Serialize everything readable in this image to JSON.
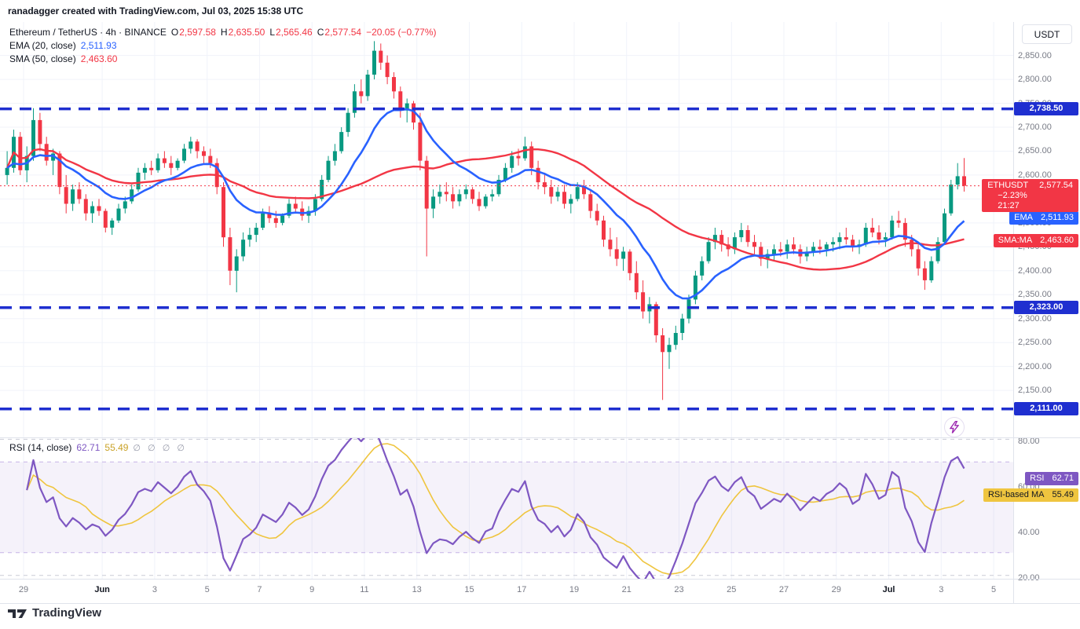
{
  "header": {
    "credit": "ranadagger created with TradingView.com, Jul 03, 2025 15:38 UTC"
  },
  "legend": {
    "title": "Ethereum / TetherUS · 4h · BINANCE",
    "o_label": "O",
    "o": "2,597.58",
    "h_label": "H",
    "h": "2,635.50",
    "l_label": "L",
    "l": "2,565.46",
    "c_label": "C",
    "c": "2,577.54",
    "change": "−20.05 (−0.77%)",
    "ema_label": "EMA (20, close)",
    "ema_value": "2,511.93",
    "sma_label": "SMA (50, close)",
    "sma_value": "2,463.60"
  },
  "axis": {
    "currency": "USDT",
    "price_ticks": [
      {
        "value": 2850,
        "label": "2,850.00"
      },
      {
        "value": 2800,
        "label": "2,800.00"
      },
      {
        "value": 2750,
        "label": "2,750.00"
      },
      {
        "value": 2700,
        "label": "2,700.00"
      },
      {
        "value": 2650,
        "label": "2,650.00"
      },
      {
        "value": 2600,
        "label": "2,600.00"
      },
      {
        "value": 2550,
        "label": "2,550.00"
      },
      {
        "value": 2500,
        "label": "2,500.00"
      },
      {
        "value": 2450,
        "label": "2,450.00"
      },
      {
        "value": 2400,
        "label": "2,400.00"
      },
      {
        "value": 2350,
        "label": "2,350.00"
      },
      {
        "value": 2300,
        "label": "2,300.00"
      },
      {
        "value": 2250,
        "label": "2,250.00"
      },
      {
        "value": 2200,
        "label": "2,200.00"
      },
      {
        "value": 2150,
        "label": "2,150.00"
      }
    ],
    "time_ticks": [
      {
        "label": "29",
        "day": 0
      },
      {
        "label": "Jun",
        "day": 3,
        "major": true
      },
      {
        "label": "3",
        "day": 5
      },
      {
        "label": "5",
        "day": 7
      },
      {
        "label": "7",
        "day": 9
      },
      {
        "label": "9",
        "day": 11
      },
      {
        "label": "11",
        "day": 13
      },
      {
        "label": "13",
        "day": 15
      },
      {
        "label": "15",
        "day": 17
      },
      {
        "label": "17",
        "day": 19
      },
      {
        "label": "19",
        "day": 21
      },
      {
        "label": "21",
        "day": 23
      },
      {
        "label": "23",
        "day": 25
      },
      {
        "label": "25",
        "day": 27
      },
      {
        "label": "27",
        "day": 29
      },
      {
        "label": "29",
        "day": 31
      },
      {
        "label": "Jul",
        "day": 33,
        "major": true
      },
      {
        "label": "3",
        "day": 35
      },
      {
        "label": "5",
        "day": 37
      }
    ]
  },
  "badges": {
    "levels": [
      {
        "text": "2,738.50",
        "value": 2738.5
      },
      {
        "text": "2,323.00",
        "value": 2323.0
      },
      {
        "text": "2,111.00",
        "value": 2111.0
      }
    ],
    "last_price": {
      "symbol": "ETHUSDT",
      "price": "2,577.54",
      "change": "−2.23%",
      "countdown": "21:27",
      "value": 2577.54
    },
    "ema": {
      "label": "EMA",
      "text": "2,511.93",
      "value": 2511.93
    },
    "sma": {
      "label": "SMA:MA",
      "text": "2,463.60",
      "value": 2463.6
    },
    "rsi": {
      "label": "RSI",
      "text": "62.71",
      "value": 62.71
    },
    "rsi_ma": {
      "label": "RSI-based MA",
      "text": "55.49",
      "value": 55.49
    }
  },
  "rsi": {
    "label": "RSI (14, close)",
    "value": "62.71",
    "ma_value": "55.49",
    "empties": "∅ ∅ ∅ ∅",
    "ticks": [
      {
        "value": 80,
        "label": "80.00"
      },
      {
        "value": 60,
        "label": "60.00"
      },
      {
        "value": 40,
        "label": "40.00"
      },
      {
        "value": 20,
        "label": "20.00"
      }
    ]
  },
  "footer": {
    "brand": "TradingView"
  },
  "colors": {
    "up": "#089981",
    "down": "#F23645",
    "ema": "#2962FF",
    "sma": "#F23645",
    "level": "#1F2FD0",
    "last_price": "#F23645",
    "rsi": "#7E57C2",
    "rsi_ma": "#EFC53F",
    "band": "rgba(126,87,194,0.08)",
    "band_edge": "#C6B3E6",
    "grid": "#F0F3FA",
    "grid_dash": "#C9CCD6",
    "axis_text": "#787B86",
    "text": "#131722",
    "bolt": "#9C27B0"
  },
  "chart_data": {
    "type": "candlestick",
    "symbol": "ETHUSDT",
    "exchange": "BINANCE",
    "interval": "4h",
    "title": "Ethereum / TetherUS · 4h · BINANCE",
    "last_ohlc": {
      "open": 2597.58,
      "high": 2635.5,
      "low": 2565.46,
      "close": 2577.54,
      "change": -20.05,
      "change_pct": -0.77
    },
    "price_axis": {
      "min": 2050,
      "max": 2920,
      "tick_step": 50
    },
    "rsi_axis": {
      "min": 18.5,
      "max": 80.5,
      "band": [
        30,
        70
      ],
      "dashed": [
        80,
        70,
        30,
        20
      ]
    },
    "levels": [
      2738.5,
      2323.0,
      2111.0
    ],
    "last_price": 2577.54,
    "indicators": {
      "ema": {
        "label": "EMA (20, close)",
        "period": 20,
        "render_period": 13,
        "last": 2511.93
      },
      "sma": {
        "label": "SMA (50, close)",
        "period": 50,
        "render_period": 33,
        "last": 2463.6
      },
      "rsi": {
        "label": "RSI (14, close)",
        "period": 14,
        "render_period": 10,
        "last": 62.71,
        "ma_period": 14,
        "ma_render_period": 9,
        "ma_last": 55.49
      }
    },
    "time_axis": {
      "first_candle_day": -0.75,
      "candles_per_day": 4,
      "days_span": 37,
      "start_label": "May 29",
      "end_label": "Jul 5"
    },
    "candles": [
      [
        2600,
        2650,
        2580,
        2615
      ],
      [
        2615,
        2695,
        2605,
        2680
      ],
      [
        2680,
        2690,
        2600,
        2610
      ],
      [
        2610,
        2660,
        2585,
        2640
      ],
      [
        2640,
        2740,
        2630,
        2715
      ],
      [
        2715,
        2730,
        2650,
        2665
      ],
      [
        2665,
        2680,
        2620,
        2630
      ],
      [
        2630,
        2655,
        2600,
        2645
      ],
      [
        2645,
        2650,
        2560,
        2575
      ],
      [
        2575,
        2600,
        2520,
        2540
      ],
      [
        2540,
        2580,
        2525,
        2570
      ],
      [
        2570,
        2585,
        2540,
        2550
      ],
      [
        2550,
        2560,
        2505,
        2520
      ],
      [
        2520,
        2545,
        2500,
        2535
      ],
      [
        2535,
        2550,
        2515,
        2525
      ],
      [
        2525,
        2530,
        2480,
        2490
      ],
      [
        2490,
        2510,
        2475,
        2505
      ],
      [
        2505,
        2540,
        2500,
        2530
      ],
      [
        2530,
        2555,
        2520,
        2545
      ],
      [
        2545,
        2580,
        2540,
        2570
      ],
      [
        2570,
        2615,
        2565,
        2605
      ],
      [
        2605,
        2625,
        2590,
        2615
      ],
      [
        2615,
        2630,
        2600,
        2610
      ],
      [
        2610,
        2645,
        2605,
        2635
      ],
      [
        2635,
        2650,
        2615,
        2625
      ],
      [
        2625,
        2640,
        2600,
        2615
      ],
      [
        2615,
        2635,
        2610,
        2630
      ],
      [
        2630,
        2665,
        2625,
        2655
      ],
      [
        2655,
        2680,
        2645,
        2670
      ],
      [
        2670,
        2675,
        2635,
        2650
      ],
      [
        2650,
        2660,
        2625,
        2640
      ],
      [
        2640,
        2655,
        2615,
        2625
      ],
      [
        2625,
        2635,
        2560,
        2575
      ],
      [
        2575,
        2585,
        2450,
        2470
      ],
      [
        2470,
        2490,
        2370,
        2400
      ],
      [
        2400,
        2445,
        2355,
        2430
      ],
      [
        2430,
        2480,
        2420,
        2465
      ],
      [
        2465,
        2490,
        2450,
        2475
      ],
      [
        2475,
        2500,
        2460,
        2490
      ],
      [
        2490,
        2530,
        2485,
        2520
      ],
      [
        2520,
        2535,
        2500,
        2510
      ],
      [
        2510,
        2525,
        2490,
        2500
      ],
      [
        2500,
        2520,
        2495,
        2515
      ],
      [
        2515,
        2550,
        2510,
        2540
      ],
      [
        2540,
        2555,
        2520,
        2530
      ],
      [
        2530,
        2545,
        2505,
        2515
      ],
      [
        2515,
        2535,
        2500,
        2525
      ],
      [
        2525,
        2560,
        2515,
        2550
      ],
      [
        2550,
        2600,
        2545,
        2590
      ],
      [
        2590,
        2640,
        2585,
        2630
      ],
      [
        2630,
        2665,
        2620,
        2650
      ],
      [
        2650,
        2700,
        2645,
        2690
      ],
      [
        2690,
        2740,
        2680,
        2730
      ],
      [
        2730,
        2790,
        2720,
        2775
      ],
      [
        2775,
        2800,
        2750,
        2765
      ],
      [
        2765,
        2820,
        2755,
        2810
      ],
      [
        2810,
        2880,
        2800,
        2860
      ],
      [
        2860,
        2875,
        2820,
        2835
      ],
      [
        2835,
        2850,
        2790,
        2805
      ],
      [
        2805,
        2815,
        2760,
        2775
      ],
      [
        2775,
        2785,
        2720,
        2735
      ],
      [
        2735,
        2760,
        2710,
        2750
      ],
      [
        2750,
        2755,
        2695,
        2710
      ],
      [
        2710,
        2730,
        2610,
        2630
      ],
      [
        2630,
        2640,
        2430,
        2530
      ],
      [
        2530,
        2570,
        2510,
        2555
      ],
      [
        2555,
        2580,
        2540,
        2565
      ],
      [
        2565,
        2585,
        2545,
        2560
      ],
      [
        2560,
        2575,
        2530,
        2545
      ],
      [
        2545,
        2570,
        2535,
        2560
      ],
      [
        2560,
        2580,
        2550,
        2570
      ],
      [
        2570,
        2575,
        2540,
        2550
      ],
      [
        2550,
        2565,
        2525,
        2535
      ],
      [
        2535,
        2560,
        2530,
        2555
      ],
      [
        2555,
        2570,
        2545,
        2560
      ],
      [
        2560,
        2600,
        2555,
        2590
      ],
      [
        2590,
        2625,
        2585,
        2615
      ],
      [
        2615,
        2650,
        2605,
        2640
      ],
      [
        2640,
        2655,
        2620,
        2635
      ],
      [
        2635,
        2680,
        2630,
        2660
      ],
      [
        2660,
        2670,
        2600,
        2615
      ],
      [
        2615,
        2630,
        2570,
        2585
      ],
      [
        2585,
        2605,
        2560,
        2575
      ],
      [
        2575,
        2590,
        2540,
        2555
      ],
      [
        2555,
        2575,
        2545,
        2565
      ],
      [
        2565,
        2580,
        2530,
        2540
      ],
      [
        2540,
        2560,
        2520,
        2550
      ],
      [
        2550,
        2585,
        2545,
        2575
      ],
      [
        2575,
        2590,
        2550,
        2560
      ],
      [
        2560,
        2570,
        2510,
        2525
      ],
      [
        2525,
        2540,
        2495,
        2505
      ],
      [
        2505,
        2515,
        2450,
        2465
      ],
      [
        2465,
        2490,
        2430,
        2445
      ],
      [
        2445,
        2470,
        2410,
        2425
      ],
      [
        2425,
        2450,
        2400,
        2440
      ],
      [
        2440,
        2445,
        2380,
        2395
      ],
      [
        2395,
        2420,
        2340,
        2355
      ],
      [
        2355,
        2380,
        2300,
        2315
      ],
      [
        2315,
        2345,
        2290,
        2330
      ],
      [
        2330,
        2335,
        2250,
        2265
      ],
      [
        2265,
        2280,
        2130,
        2230
      ],
      [
        2230,
        2260,
        2195,
        2245
      ],
      [
        2245,
        2285,
        2235,
        2270
      ],
      [
        2270,
        2310,
        2255,
        2300
      ],
      [
        2300,
        2350,
        2290,
        2340
      ],
      [
        2340,
        2400,
        2330,
        2390
      ],
      [
        2390,
        2430,
        2380,
        2420
      ],
      [
        2420,
        2470,
        2415,
        2460
      ],
      [
        2460,
        2490,
        2445,
        2475
      ],
      [
        2475,
        2485,
        2440,
        2455
      ],
      [
        2455,
        2470,
        2430,
        2445
      ],
      [
        2445,
        2480,
        2435,
        2470
      ],
      [
        2470,
        2500,
        2460,
        2485
      ],
      [
        2485,
        2495,
        2450,
        2460
      ],
      [
        2460,
        2475,
        2435,
        2450
      ],
      [
        2450,
        2460,
        2410,
        2425
      ],
      [
        2425,
        2445,
        2405,
        2435
      ],
      [
        2435,
        2455,
        2420,
        2445
      ],
      [
        2445,
        2460,
        2430,
        2440
      ],
      [
        2440,
        2465,
        2425,
        2455
      ],
      [
        2455,
        2470,
        2435,
        2445
      ],
      [
        2445,
        2455,
        2415,
        2430
      ],
      [
        2430,
        2450,
        2420,
        2440
      ],
      [
        2440,
        2460,
        2430,
        2450
      ],
      [
        2450,
        2465,
        2435,
        2445
      ],
      [
        2445,
        2460,
        2430,
        2455
      ],
      [
        2455,
        2470,
        2440,
        2460
      ],
      [
        2460,
        2480,
        2445,
        2470
      ],
      [
        2470,
        2490,
        2455,
        2465
      ],
      [
        2465,
        2475,
        2440,
        2450
      ],
      [
        2450,
        2465,
        2435,
        2455
      ],
      [
        2455,
        2500,
        2450,
        2490
      ],
      [
        2490,
        2510,
        2470,
        2480
      ],
      [
        2480,
        2495,
        2455,
        2465
      ],
      [
        2465,
        2480,
        2450,
        2470
      ],
      [
        2470,
        2515,
        2465,
        2505
      ],
      [
        2505,
        2525,
        2490,
        2500
      ],
      [
        2500,
        2510,
        2450,
        2465
      ],
      [
        2465,
        2475,
        2430,
        2445
      ],
      [
        2445,
        2455,
        2390,
        2405
      ],
      [
        2405,
        2420,
        2360,
        2380
      ],
      [
        2380,
        2430,
        2375,
        2420
      ],
      [
        2420,
        2470,
        2415,
        2460
      ],
      [
        2460,
        2530,
        2455,
        2520
      ],
      [
        2520,
        2590,
        2515,
        2580
      ],
      [
        2580,
        2625,
        2570,
        2597.58
      ],
      [
        2597.58,
        2635.5,
        2565.46,
        2577.54
      ]
    ]
  }
}
